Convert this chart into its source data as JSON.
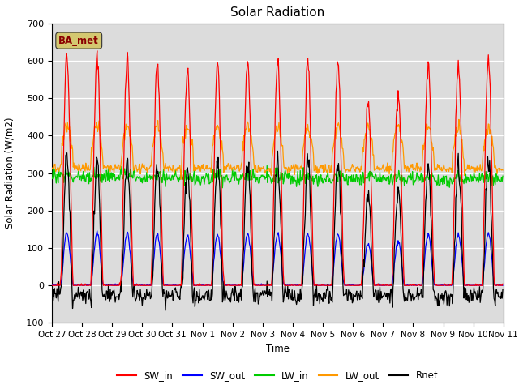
{
  "title": "Solar Radiation",
  "ylabel": "Solar Radiation (W/m2)",
  "xlabel": "Time",
  "ylim": [
    -100,
    700
  ],
  "yticks": [
    -100,
    0,
    100,
    200,
    300,
    400,
    500,
    600,
    700
  ],
  "bg_color": "#dcdcdc",
  "fig_bg": "#ffffff",
  "station_label": "BA_met",
  "station_label_color": "#8b0000",
  "station_box_facecolor": "#d4c870",
  "station_box_edgecolor": "#333333",
  "legend_entries": [
    "SW_in",
    "SW_out",
    "LW_in",
    "LW_out",
    "Rnet"
  ],
  "colors": {
    "SW_in": "#ff0000",
    "SW_out": "#0000ff",
    "LW_in": "#00cc00",
    "LW_out": "#ff9900",
    "Rnet": "#000000"
  },
  "n_days": 15,
  "tick_labels": [
    "Oct 27",
    "Oct 28",
    "Oct 29",
    "Oct 30",
    "Oct 31",
    "Nov 1",
    "Nov 2",
    "Nov 3",
    "Nov 4",
    "Nov 5",
    "Nov 6",
    "Nov 7",
    "Nov 8",
    "Nov 9",
    "Nov 10",
    "Nov 11"
  ],
  "sw_peaks": [
    625,
    610,
    605,
    598,
    585,
    595,
    600,
    600,
    590,
    600,
    490,
    520,
    600,
    590,
    610
  ],
  "lw_out_night": 315,
  "lw_out_day_boost": 110,
  "lw_in_base": 290,
  "rnet_night": -65
}
